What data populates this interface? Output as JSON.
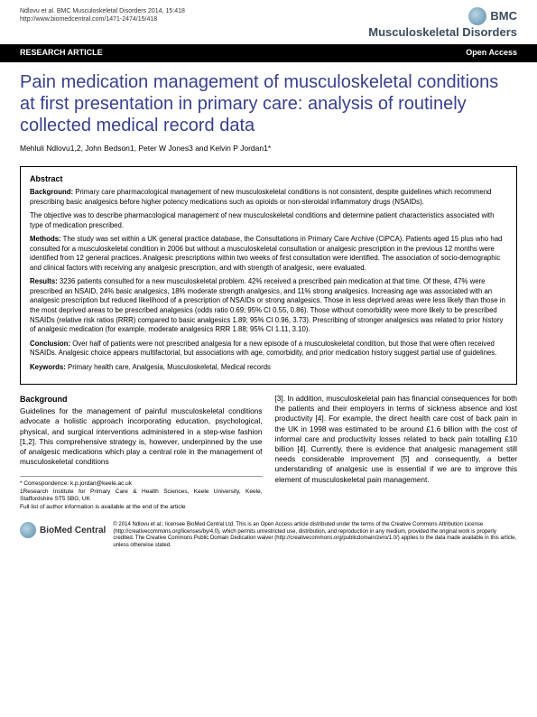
{
  "header": {
    "citation": "Ndlovu et al. BMC Musculoskeletal Disorders 2014, 15:418",
    "url": "http://www.biomedcentral.com/1471-2474/15/418",
    "journal_prefix": "BMC",
    "journal_name": "Musculoskeletal Disorders"
  },
  "bar": {
    "left": "RESEARCH ARTICLE",
    "right": "Open Access"
  },
  "title": "Pain medication management of musculoskeletal conditions at first presentation in primary care: analysis of routinely collected medical record data",
  "authors": "Mehluli Ndlovu1,2, John Bedson1, Peter W Jones3 and Kelvin P Jordan1*",
  "abstract": {
    "heading": "Abstract",
    "background_label": "Background:",
    "background": " Primary care pharmacological management of new musculoskeletal conditions is not consistent, despite guidelines which recommend prescribing basic analgesics before higher potency medications such as opioids or non-steroidal inflammatory drugs (NSAIDs).",
    "background2": "The objective was to describe pharmacological management of new musculoskeletal conditions and determine patient characteristics associated with type of medication prescribed.",
    "methods_label": "Methods:",
    "methods": " The study was set within a UK general practice database, the Consultations in Primary Care Archive (CiPCA). Patients aged 15 plus who had consulted for a musculoskeletal condition in 2006 but without a musculoskeletal consultation or analgesic prescription in the previous 12 months were identified from 12 general practices. Analgesic prescriptions within two weeks of first consultation were identified. The association of socio-demographic and clinical factors with receiving any analgesic prescription, and with strength of analgesic, were evaluated.",
    "results_label": "Results:",
    "results": " 3236 patients consulted for a new musculoskeletal problem. 42% received a prescribed pain medication at that time. Of these, 47% were prescribed an NSAID, 24% basic analgesics, 18% moderate strength analgesics, and 11% strong analgesics. Increasing age was associated with an analgesic prescription but reduced likelihood of a prescription of NSAIDs or strong analgesics. Those in less deprived areas were less likely than those in the most deprived areas to be prescribed analgesics (odds ratio 0.69; 95% CI 0.55, 0.86). Those without comorbidity were more likely to be prescribed NSAIDs (relative risk ratios (RRR) compared to basic analgesics 1.89; 95% CI 0.96, 3.73). Prescribing of stronger analgesics was related to prior history of analgesic medication (for example, moderate analgesics RRR 1.88; 95% CI 1.11, 3.10).",
    "conclusion_label": "Conclusion:",
    "conclusion": " Over half of patients were not prescribed analgesia for a new episode of a musculoskeletal condition, but those that were often received NSAIDs. Analgesic choice appears multifactorial, but associations with age, comorbidity, and prior medication history suggest partial use of guidelines.",
    "keywords_label": "Keywords:",
    "keywords": " Primary health care, Analgesia, Musculoskeletal, Medical records"
  },
  "body": {
    "left": {
      "heading": "Background",
      "text": "Guidelines for the management of painful musculoskeletal conditions advocate a holistic approach incorporating education, psychological, physical, and surgical interventions administered in a step-wise fashion [1,2]. This comprehensive strategy is, however, underpinned by the use of analgesic medications which play a central role in the management of musculoskeletal conditions"
    },
    "right": {
      "text": "[3]. In addition, musculoskeletal pain has financial consequences for both the patients and their employers in terms of sickness absence and lost productivity [4]. For example, the direct health care cost of back pain in the UK in 1998 was estimated to be around £1.6 billion with the cost of informal care and productivity losses related to back pain totalling £10 billion [4]. Currently, there is evidence that analgesic management still needs considerable improvement [5] and consequently, a better understanding of analgesic use is essential if we are to improve this element of musculoskeletal pain management."
    }
  },
  "footnotes": {
    "corr": "* Correspondence: k.p.jordan@keele.ac.uk",
    "affil1": "1Research Institute for Primary Care & Health Sciences, Keele University, Keele, Staffordshire ST5 5BG, UK",
    "affil2": "Full list of author information is available at the end of the article"
  },
  "footer": {
    "logo_text": "BioMed Central",
    "license": "© 2014 Ndlovu et al.; licensee BioMed Central Ltd. This is an Open Access article distributed under the terms of the Creative Commons Attribution License (http://creativecommons.org/licenses/by/4.0), which permits unrestricted use, distribution, and reproduction in any medium, provided the original work is properly credited. The Creative Commons Public Domain Dedication waiver (http://creativecommons.org/publicdomain/zero/1.0/) applies to the data made available in this article, unless otherwise stated."
  }
}
